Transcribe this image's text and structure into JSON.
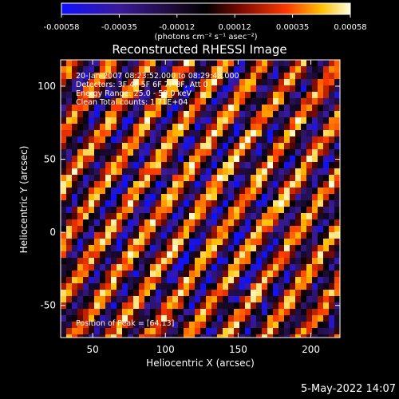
{
  "colorbar": {
    "tick_labels": [
      "-0.00058",
      "-0.00035",
      "-0.00012",
      "0.00012",
      "0.00035",
      "0.00058"
    ],
    "units_label": "(photons cm⁻² s⁻¹ asec⁻²)",
    "colors": [
      "#1010ff",
      "#3a1a9a",
      "#1a0a30",
      "#000000",
      "#7a0a00",
      "#ff3a00",
      "#ffc000",
      "#ffffe0"
    ]
  },
  "chart_data": {
    "type": "heatmap",
    "title": "Reconstructed RHESSI Image",
    "xlabel": "Heliocentric X (arcsec)",
    "ylabel": "Heliocentric Y (arcsec)",
    "xlim": [
      28,
      220
    ],
    "ylim": [
      -72,
      118
    ],
    "xticks": [
      50,
      100,
      150,
      200
    ],
    "yticks": [
      -50,
      0,
      50,
      100
    ],
    "colorbar_range": [
      -0.00058,
      0.00058
    ],
    "annotations": [
      "20-Jan-2007 08:23:52.000 to 08:29:48.000",
      "Detectors: 3F 4F 5F 6F 7F 8F, Att 0",
      "Energy Range: 25.0 - 50.0 keV",
      "Clean    Total counts: 1.71E+04"
    ],
    "peak_label": "Position of Peak = [64,13]"
  },
  "footer": {
    "date": "5-May-2022 14:07"
  }
}
